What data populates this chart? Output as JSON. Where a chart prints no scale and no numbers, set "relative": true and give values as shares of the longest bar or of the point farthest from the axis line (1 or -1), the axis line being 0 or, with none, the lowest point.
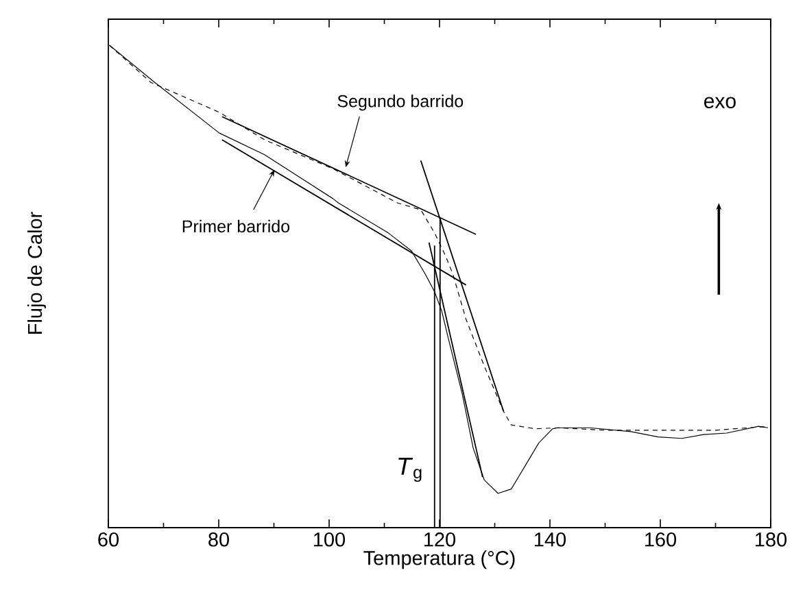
{
  "chart_data": {
    "type": "line",
    "relative": true,
    "xlabel": "Temperatura (°C)",
    "ylabel": "Flujo de Calor",
    "xlim": [
      60,
      180
    ],
    "xticks": [
      60,
      80,
      100,
      120,
      140,
      160,
      180
    ],
    "series": [
      {
        "color": "#000000",
        "line_style": "solid",
        "x": [
          60.2,
          68.4,
          80.1,
          88.3,
          100.7,
          101.7,
          110.7,
          114.9,
          117.4,
          119.1,
          120.4,
          121.6,
          124.1,
          126.1,
          128.1,
          130.6,
          133.0,
          135.5,
          138.0,
          140.5,
          141.5,
          147.2,
          154.7,
          159.6,
          163.9,
          167.8,
          172.0,
          177.8,
          179.5
        ],
        "values": [
          1.0,
          0.923,
          0.818,
          0.773,
          0.682,
          0.673,
          0.611,
          0.574,
          0.526,
          0.489,
          0.449,
          0.392,
          0.278,
          0.165,
          0.099,
          0.071,
          0.08,
          0.128,
          0.176,
          0.205,
          0.207,
          0.207,
          0.199,
          0.188,
          0.185,
          0.193,
          0.196,
          0.21,
          0.207
        ]
      },
      {
        "color": "#000000",
        "line_style": "dashed",
        "x": [
          60.2,
          67.7,
          80.1,
          88.3,
          100.7,
          112.4,
          116.6,
          119.1,
          121.1,
          122.4,
          124.8,
          128.1,
          131.6,
          133.0,
          137.3,
          141.5,
          150,
          160,
          170,
          179.5
        ],
        "values": [
          1.0,
          0.923,
          0.861,
          0.804,
          0.744,
          0.673,
          0.659,
          0.611,
          0.563,
          0.526,
          0.432,
          0.335,
          0.241,
          0.213,
          0.205,
          0.207,
          0.202,
          0.202,
          0.202,
          0.21
        ]
      },
      {
        "color": "#000000",
        "line_style": "solid",
        "x": [
          80.6,
          126.6
        ],
        "values": [
          0.852,
          0.608
        ]
      },
      {
        "color": "#000000",
        "line_style": "solid",
        "x": [
          80.6,
          124.8
        ],
        "values": [
          0.804,
          0.503
        ]
      },
      {
        "color": "#000000",
        "line_style": "solid",
        "x": [
          116.6,
          131.6
        ],
        "values": [
          0.761,
          0.241
        ]
      },
      {
        "color": "#000000",
        "line_style": "solid",
        "x": [
          118.1,
          127.8
        ],
        "values": [
          0.591,
          0.105
        ]
      },
      {
        "color": "#000000",
        "line_style": "solid",
        "x": [
          119.1,
          119.1
        ],
        "values": [
          0,
          0.585
        ]
      },
      {
        "color": "#000000",
        "line_style": "solid",
        "x": [
          120.1,
          120.1
        ],
        "values": [
          0,
          0.642
        ]
      }
    ],
    "annotations": [
      {
        "text": "Segundo barrido",
        "x": 103.0,
        "y": 0.747
      },
      "Primer barrido",
      "exo",
      "*T*$_{g}$"
    ]
  }
}
